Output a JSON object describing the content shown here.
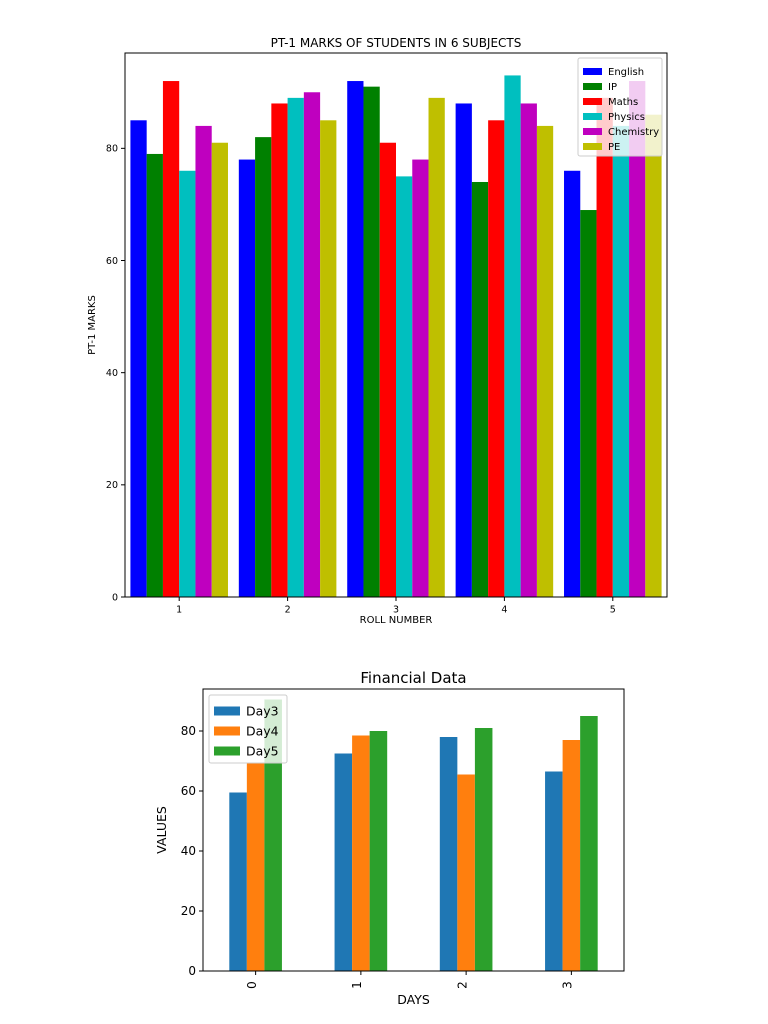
{
  "chart_data": [
    {
      "type": "bar",
      "title": "PT-1 MARKS OF STUDENTS IN 6 SUBJECTS",
      "xlabel": "ROLL NUMBER",
      "ylabel": "PT-1 MARKS",
      "categories": [
        "1",
        "2",
        "3",
        "4",
        "5"
      ],
      "ylim": [
        0,
        97
      ],
      "yticks": [
        0,
        20,
        40,
        60,
        80
      ],
      "legend_position": "top-right",
      "grid": false,
      "series": [
        {
          "name": "English",
          "color": "#0000ff",
          "values": [
            85,
            78,
            92,
            88,
            76
          ]
        },
        {
          "name": "IP",
          "color": "#008000",
          "values": [
            79,
            82,
            91,
            74,
            69
          ]
        },
        {
          "name": "Maths",
          "color": "#ff0000",
          "values": [
            92,
            88,
            81,
            85,
            89
          ]
        },
        {
          "name": "Physics",
          "color": "#00bfbf",
          "values": [
            76,
            89,
            75,
            93,
            84
          ]
        },
        {
          "name": "Chemistry",
          "color": "#bf00bf",
          "values": [
            84,
            90,
            78,
            88,
            92
          ]
        },
        {
          "name": "PE",
          "color": "#bfbf00",
          "values": [
            81,
            85,
            89,
            84,
            86
          ]
        }
      ]
    },
    {
      "type": "bar",
      "title": "Financial Data",
      "xlabel": "DAYS",
      "ylabel": "VALUES",
      "categories": [
        "0",
        "1",
        "2",
        "3"
      ],
      "ylim": [
        0,
        94
      ],
      "yticks": [
        0,
        20,
        40,
        60,
        80
      ],
      "legend_position": "top-left",
      "grid": false,
      "series": [
        {
          "name": "Day3",
          "color": "#1f77b4",
          "values": [
            59.5,
            72.5,
            78,
            66.5
          ]
        },
        {
          "name": "Day4",
          "color": "#ff7f0e",
          "values": [
            69.5,
            78.5,
            65.5,
            77
          ]
        },
        {
          "name": "Day5",
          "color": "#2ca02c",
          "values": [
            90.5,
            80,
            81,
            85
          ]
        }
      ]
    }
  ]
}
